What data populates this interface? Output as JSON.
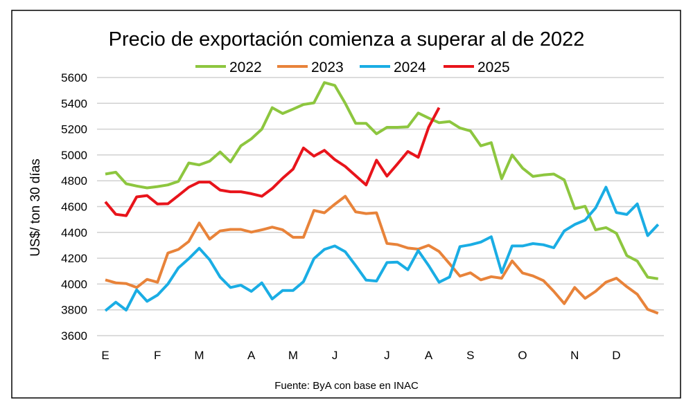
{
  "chart_data": {
    "type": "line",
    "title": "Precio de exportación comienza a superar al de 2022",
    "ylabel": "US$/ ton 30 días",
    "xlabel": "",
    "source": "Fuente: ByA con base en INAC",
    "ylim": [
      3600,
      5600
    ],
    "yticks": [
      "3600",
      "3800",
      "4000",
      "4200",
      "4400",
      "4600",
      "4800",
      "5000",
      "5200",
      "5400",
      "5600"
    ],
    "ytick_values": [
      3600,
      3800,
      4000,
      4200,
      4400,
      4600,
      4800,
      5000,
      5200,
      5400,
      5600
    ],
    "x_unit": "week of year (0-53)",
    "xticks": [
      "E",
      "F",
      "M",
      "A",
      "M",
      "J",
      "J",
      "A",
      "S",
      "O",
      "N",
      "D"
    ],
    "xtick_weeks": [
      0,
      5,
      9,
      14,
      18,
      22,
      27,
      31,
      35,
      40,
      45,
      49
    ],
    "grid": true,
    "legend_position": "top",
    "series": [
      {
        "name": "2022",
        "color": "#8DC63F",
        "values": [
          4852,
          4866,
          4777,
          4759,
          4745,
          4755,
          4768,
          4795,
          4938,
          4923,
          4952,
          5023,
          4946,
          5071,
          5125,
          5200,
          5366,
          5321,
          5355,
          5391,
          5404,
          5561,
          5539,
          5400,
          5245,
          5245,
          5164,
          5214,
          5214,
          5218,
          5325,
          5286,
          5250,
          5259,
          5209,
          5186,
          5071,
          5095,
          4816,
          5000,
          4898,
          4834,
          4845,
          4852,
          4807,
          4584,
          4602,
          4420,
          4437,
          4393,
          4220,
          4178,
          4053,
          4041
        ]
      },
      {
        "name": "2023",
        "color": "#E8833A",
        "values": [
          4032,
          4009,
          4004,
          3973,
          4036,
          4014,
          4240,
          4268,
          4330,
          4473,
          4348,
          4411,
          4423,
          4423,
          4402,
          4420,
          4441,
          4420,
          4362,
          4362,
          4570,
          4552,
          4618,
          4680,
          4559,
          4546,
          4552,
          4314,
          4305,
          4279,
          4270,
          4300,
          4252,
          4157,
          4061,
          4087,
          4032,
          4057,
          4045,
          4179,
          4086,
          4063,
          4027,
          3943,
          3848,
          3973,
          3889,
          3943,
          4014,
          4045,
          3979,
          3920,
          3804,
          3773
        ]
      },
      {
        "name": "2024",
        "color": "#1AADE4",
        "values": [
          3793,
          3859,
          3798,
          3955,
          3866,
          3914,
          4000,
          4125,
          4196,
          4277,
          4188,
          4054,
          3973,
          3991,
          3943,
          4009,
          3884,
          3950,
          3950,
          4018,
          4196,
          4268,
          4295,
          4250,
          4143,
          4030,
          4023,
          4166,
          4170,
          4111,
          4259,
          4143,
          4014,
          4054,
          4290,
          4304,
          4325,
          4366,
          4089,
          4295,
          4295,
          4313,
          4304,
          4281,
          4411,
          4461,
          4495,
          4589,
          4750,
          4554,
          4539,
          4621,
          4375,
          4461
        ]
      },
      {
        "name": "2025",
        "color": "#E8141B",
        "values": [
          4637,
          4540,
          4530,
          4675,
          4685,
          4620,
          4622,
          4685,
          4750,
          4790,
          4790,
          4728,
          4715,
          4715,
          4700,
          4680,
          4740,
          4820,
          4890,
          5054,
          4991,
          5036,
          4964,
          4911,
          4839,
          4768,
          4959,
          4836,
          4929,
          5027,
          4982,
          5214,
          5366
        ]
      }
    ]
  }
}
